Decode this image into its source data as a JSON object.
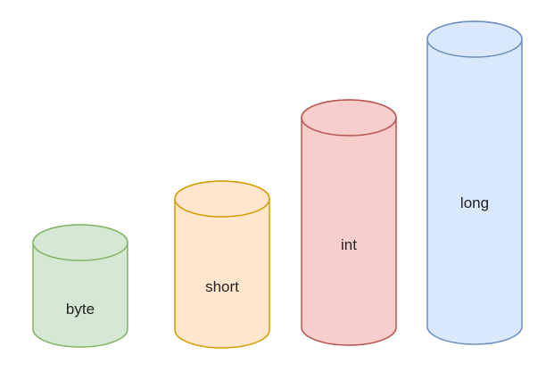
{
  "diagram": {
    "cylinders": [
      {
        "id": "byte",
        "label": "byte",
        "fill": "#d5e8d4",
        "stroke": "#82b366"
      },
      {
        "id": "short",
        "label": "short",
        "fill": "#ffe6cc",
        "stroke": "#d79b00"
      },
      {
        "id": "int",
        "label": "int",
        "fill": "#f8cecc",
        "stroke": "#b85450"
      },
      {
        "id": "long",
        "label": "long",
        "fill": "#dae8fc",
        "stroke": "#6c8ebf"
      }
    ]
  }
}
